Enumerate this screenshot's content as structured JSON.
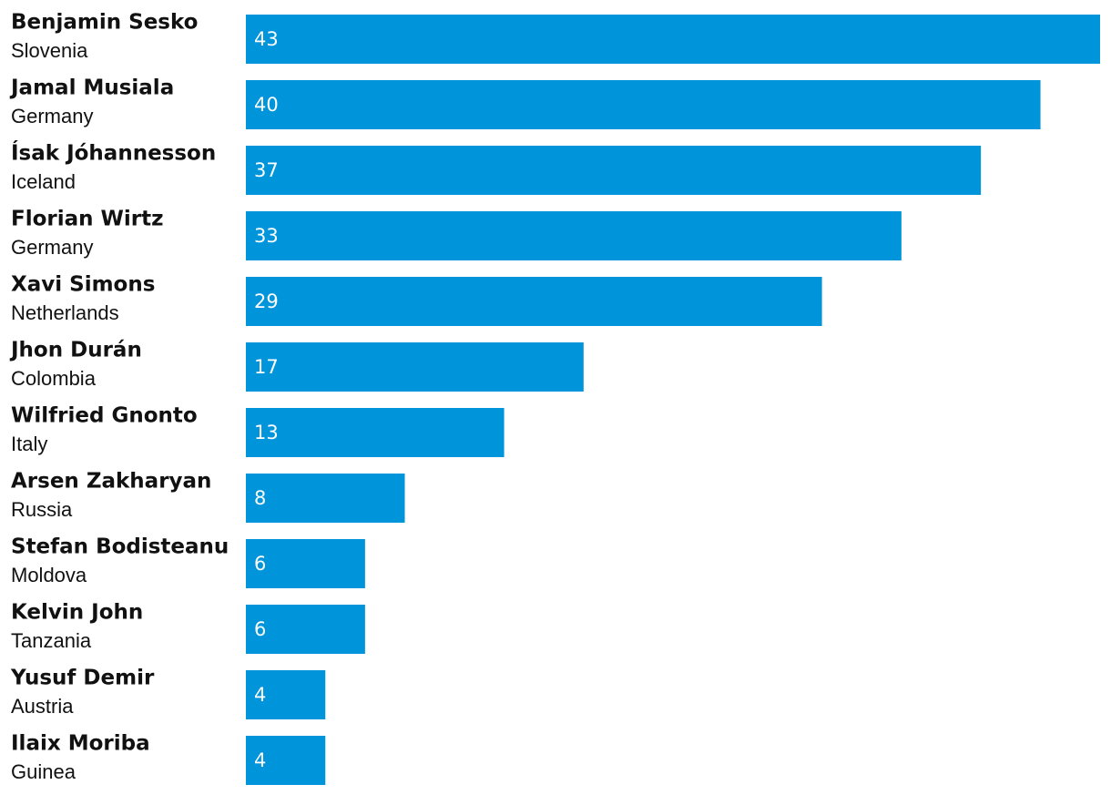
{
  "chart_data": {
    "type": "bar",
    "orientation": "horizontal",
    "categories": [
      "Benjamin Sesko",
      "Jamal Musiala",
      "Ísak Jóhannesson",
      "Florian Wirtz",
      "Xavi Simons",
      "Jhon Durán",
      "Wilfried Gnonto",
      "Arsen Zakharyan",
      "Stefan Bodisteanu",
      "Kelvin John",
      "Yusuf Demir",
      "Ilaix Moriba"
    ],
    "countries": [
      "Slovenia",
      "Germany",
      "Iceland",
      "Germany",
      "Netherlands",
      "Colombia",
      "Italy",
      "Russia",
      "Moldova",
      "Tanzania",
      "Austria",
      "Guinea"
    ],
    "values": [
      43,
      40,
      37,
      33,
      29,
      17,
      13,
      8,
      6,
      6,
      4,
      4
    ],
    "color": "#0095db"
  }
}
